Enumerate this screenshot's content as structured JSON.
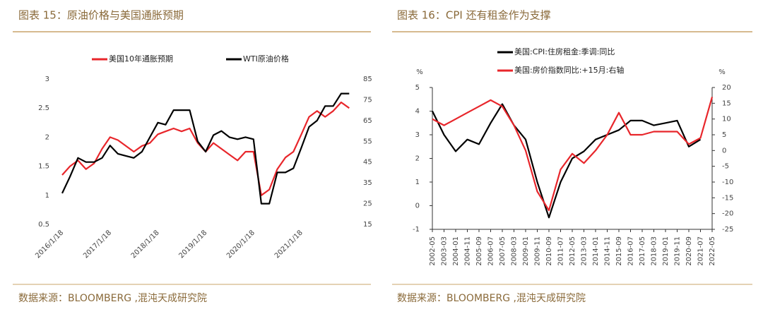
{
  "chart_data": [
    {
      "type": "line",
      "title": "图表 15：原油价格与美国通胀预期",
      "source": "数据来源：BLOOMBERG ,混沌天成研究院",
      "x": [
        "2016/1/18",
        "2016/3/18",
        "2016/5/18",
        "2016/7/18",
        "2016/9/18",
        "2016/11/18",
        "2017/1/18",
        "2017/3/18",
        "2017/5/18",
        "2017/7/18",
        "2017/9/18",
        "2017/11/18",
        "2018/1/18",
        "2018/3/18",
        "2018/5/18",
        "2018/7/18",
        "2018/9/18",
        "2018/11/18",
        "2019/1/18",
        "2019/3/18",
        "2019/5/18",
        "2019/7/18",
        "2019/9/18",
        "2019/11/18",
        "2020/1/18",
        "2020/3/18",
        "2020/5/18",
        "2020/7/18",
        "2020/9/18",
        "2020/11/18",
        "2021/1/18",
        "2021/3/18",
        "2021/5/18",
        "2021/7/18",
        "2021/9/18",
        "2021/11/18",
        "2022/1/18"
      ],
      "xlim": [
        "2016/1/18",
        "2022/2/18"
      ],
      "xticks": [
        "2016/1/18",
        "2017/1/18",
        "2018/1/18",
        "2019/1/18",
        "2020/1/18",
        "2021/1/18"
      ],
      "ylim": [
        0.5,
        3
      ],
      "yticks": [
        0.5,
        1,
        1.5,
        2,
        2.5,
        3
      ],
      "y2lim": [
        15,
        85
      ],
      "y2ticks": [
        15,
        25,
        35,
        45,
        55,
        65,
        75,
        85
      ],
      "legend": "top",
      "series": [
        {
          "name": "美国10年通胀预期",
          "color": "#e8262b",
          "values": [
            1.35,
            1.5,
            1.6,
            1.45,
            1.55,
            1.8,
            2.0,
            1.95,
            1.85,
            1.75,
            1.85,
            1.9,
            2.05,
            2.1,
            2.15,
            2.1,
            2.15,
            1.9,
            1.75,
            1.9,
            1.8,
            1.7,
            1.6,
            1.75,
            1.75,
            1.0,
            1.1,
            1.45,
            1.65,
            1.75,
            2.05,
            2.35,
            2.45,
            2.35,
            2.45,
            2.6,
            2.5
          ]
        },
        {
          "name": "WTI原油价格",
          "color": "#000000",
          "axis": "y2",
          "values": [
            30,
            38,
            47,
            45,
            45,
            47,
            53,
            49,
            48,
            47,
            50,
            57,
            64,
            63,
            70,
            70,
            70,
            55,
            50,
            58,
            60,
            57,
            56,
            57,
            56,
            25,
            25,
            40,
            40,
            42,
            52,
            62,
            65,
            72,
            72,
            78,
            78
          ]
        }
      ]
    },
    {
      "type": "line",
      "title": "图表 16：CPI 还有租金作为支撑",
      "source": "数据来源：BLOOMBERG ,混沌天成研究院",
      "categories": [
        "2002-05",
        "2003-03",
        "2004-01",
        "2004-11",
        "2005-09",
        "2006-07",
        "2007-05",
        "2008-03",
        "2009-01",
        "2009-11",
        "2010-09",
        "2011-07",
        "2012-05",
        "2013-03",
        "2014-01",
        "2014-11",
        "2015-09",
        "2016-07",
        "2017-05",
        "2018-03",
        "2019-01",
        "2019-11",
        "2020-09",
        "2021-07",
        "2022-05"
      ],
      "ylabel": "%",
      "y2label": "%",
      "ylim": [
        -1,
        5
      ],
      "yticks": [
        -1,
        0,
        1,
        2,
        3,
        4,
        5
      ],
      "y2lim": [
        -25,
        20
      ],
      "y2ticks": [
        -25,
        -20,
        -15,
        -10,
        -5,
        0,
        5,
        10,
        15,
        20
      ],
      "legend": "upper left",
      "series": [
        {
          "name": "美国:CPI:住房租金:季调:同比",
          "color": "#000000",
          "values": [
            4.0,
            3.0,
            2.3,
            2.8,
            2.6,
            3.5,
            4.3,
            3.4,
            2.8,
            1.0,
            -0.5,
            1.0,
            2.0,
            2.3,
            2.8,
            3.0,
            3.2,
            3.6,
            3.6,
            3.4,
            3.5,
            3.6,
            2.5,
            2.8,
            null
          ]
        },
        {
          "name": "美国:房价指数同比:+15月:右轴",
          "color": "#e8262b",
          "axis": "y2",
          "values": [
            10,
            8,
            10,
            12,
            14,
            16,
            14,
            8,
            0,
            -13,
            -19,
            -6,
            -1,
            -4,
            0,
            5,
            12,
            5,
            5,
            6,
            6,
            6,
            2,
            4,
            17
          ]
        }
      ]
    }
  ]
}
